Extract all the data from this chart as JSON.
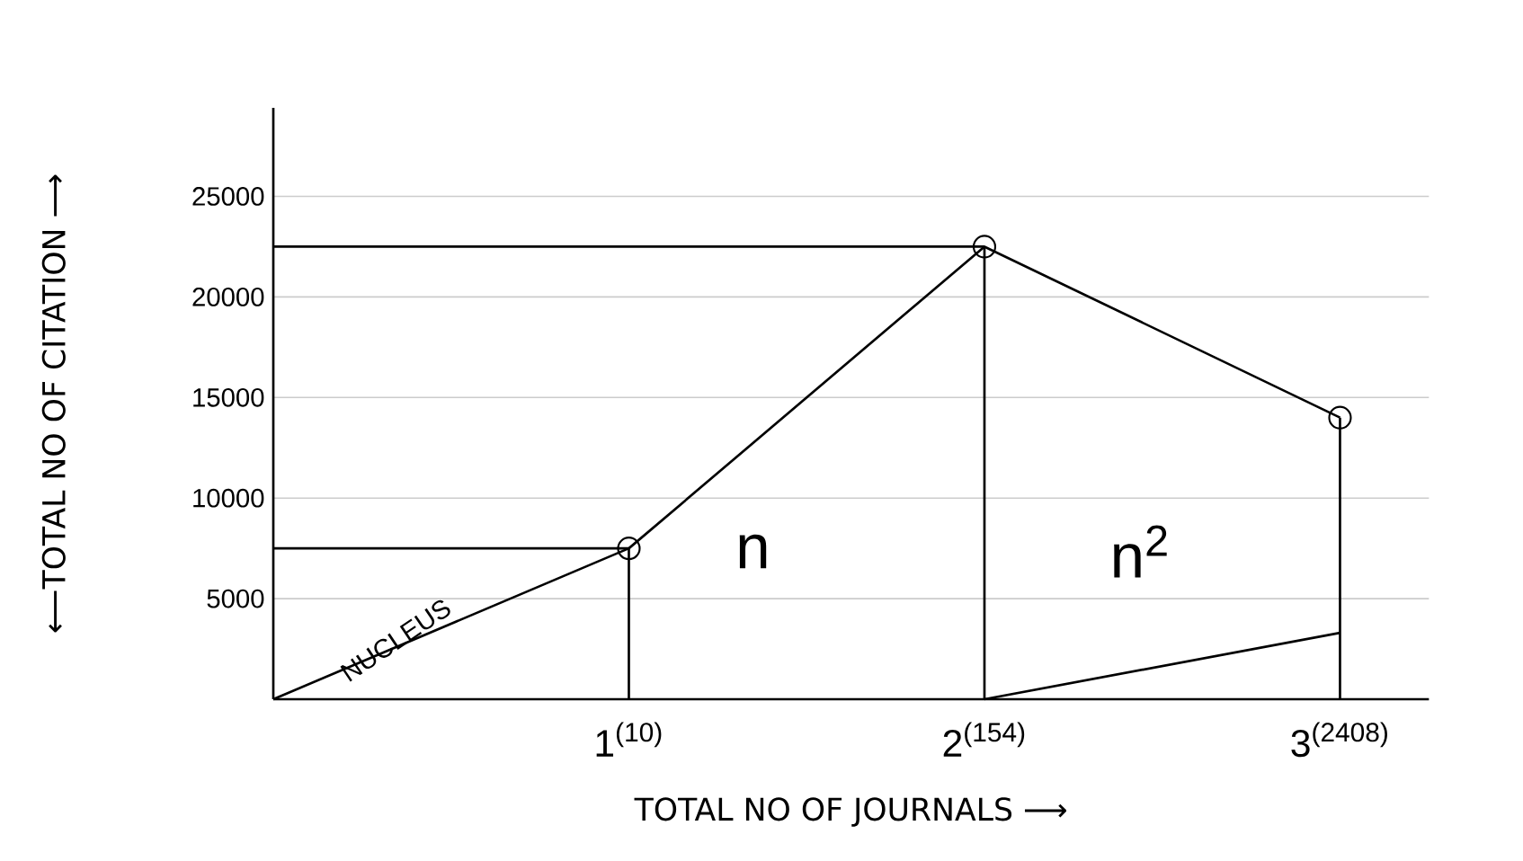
{
  "chart_data": {
    "type": "line",
    "xlabel": "TOTAL NO OF JOURNALS ⟶",
    "ylabel": "⟵TOTAL NO OF CITATION ⟶",
    "categories": [
      null,
      "1$^{(10)}$",
      "2$^{(154)}$",
      "3$^{(2408)}$"
    ],
    "ylim": [
      0,
      29400
    ],
    "yticks": [
      5000,
      10000,
      15000,
      20000,
      25000
    ],
    "grid": "y",
    "series": [
      {
        "color": "#000000",
        "values": [
          0,
          7500,
          22500,
          14000
        ]
      },
      {
        "type": "lollipop",
        "color": "#000000",
        "marker": "circle",
        "values": [
          null,
          7500,
          22500,
          14000
        ]
      },
      {
        "color": "#000000",
        "values": [
          7500,
          7500,
          null,
          null
        ]
      },
      {
        "color": "#000000",
        "values": [
          22500,
          22500,
          22500,
          null
        ]
      },
      {
        "color": "#000000",
        "values": [
          null,
          null,
          0,
          3300
        ]
      }
    ],
    "annotations": [
      "NUCLEUS",
      "n",
      "n$^{2}$"
    ]
  }
}
